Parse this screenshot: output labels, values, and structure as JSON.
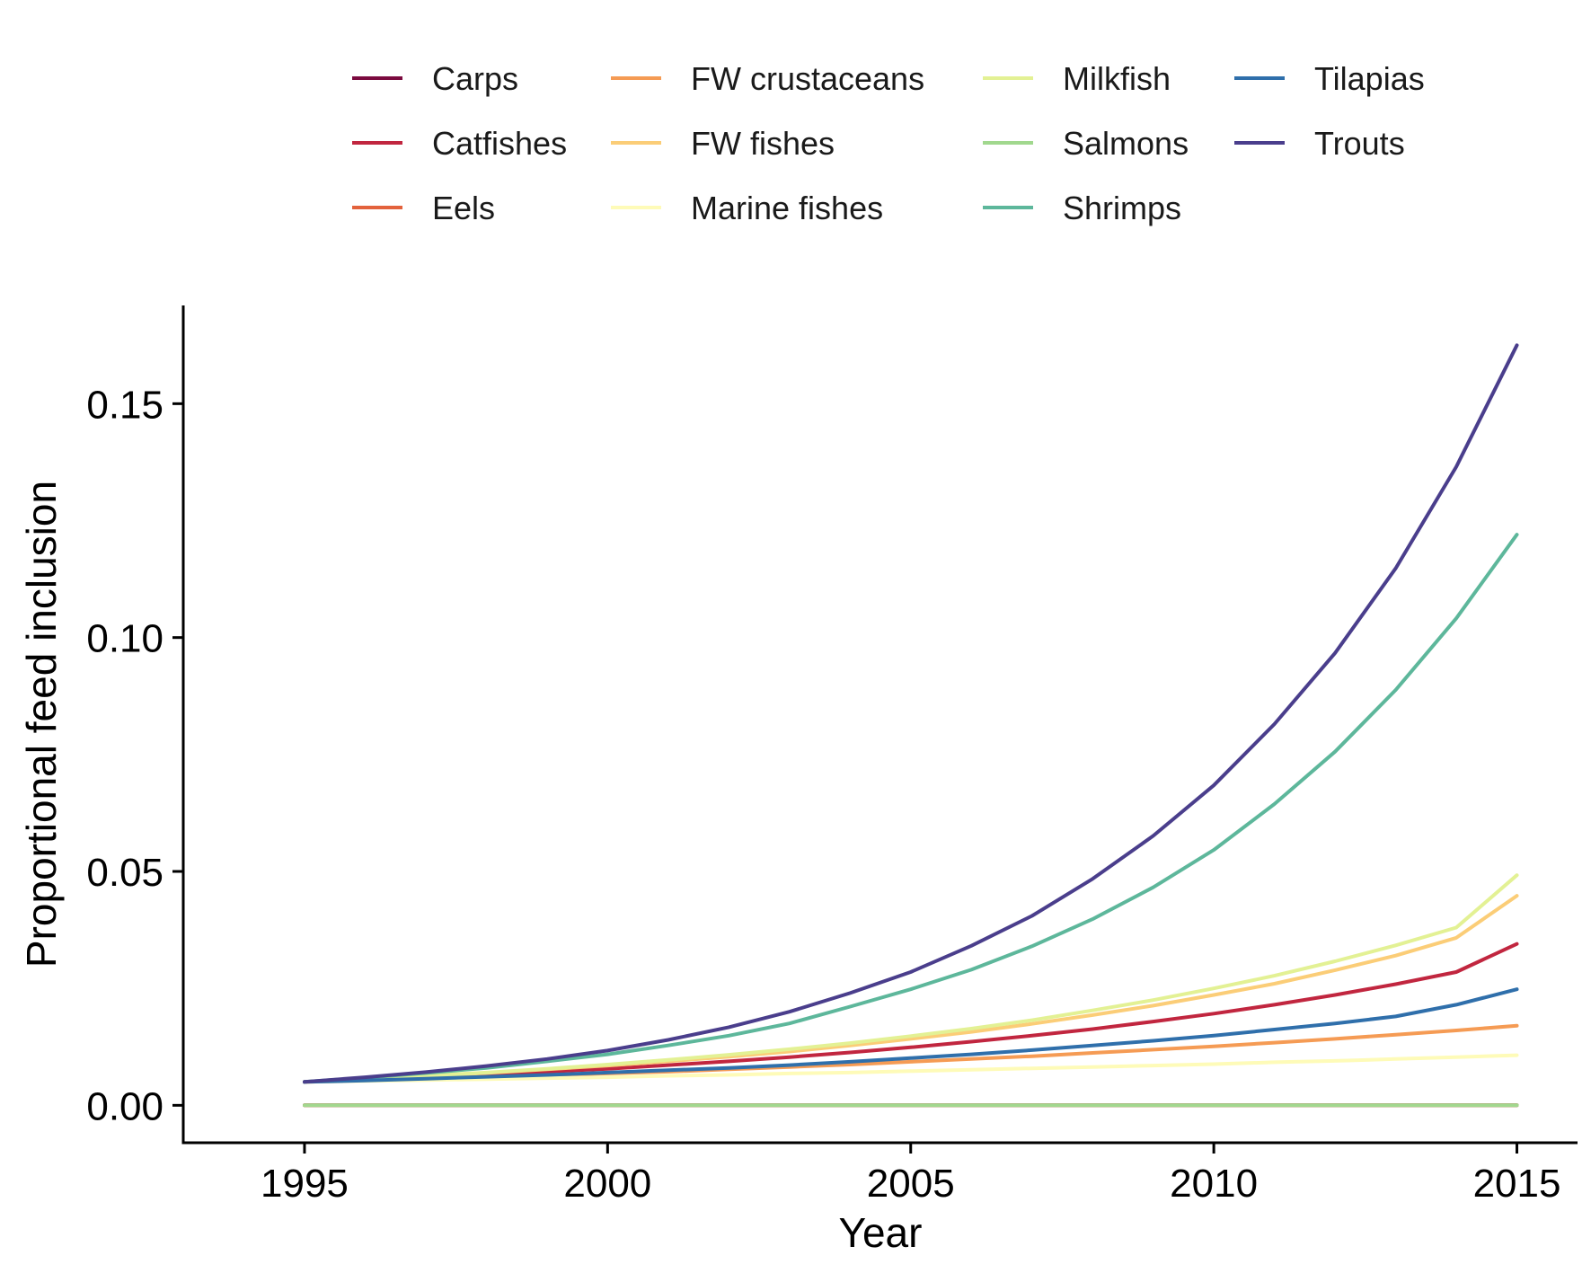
{
  "chart_data": {
    "type": "line",
    "title": "",
    "xlabel": "Year",
    "ylabel": "Proportional feed inclusion",
    "xlim": [
      1993,
      2016
    ],
    "ylim": [
      -0.008,
      0.171
    ],
    "xticks": [
      1995,
      2000,
      2005,
      2010,
      2015
    ],
    "xtick_labels": [
      "1995",
      "2000",
      "2005",
      "2010",
      "2015"
    ],
    "yticks": [
      0,
      0.05,
      0.1,
      0.15
    ],
    "ytick_labels": [
      "0.00",
      "0.05",
      "0.10",
      "0.15"
    ],
    "legend_position": "top",
    "grid": false,
    "x": [
      1995,
      1996,
      1997,
      1998,
      1999,
      2000,
      2001,
      2002,
      2003,
      2004,
      2005,
      2006,
      2007,
      2008,
      2009,
      2010,
      2011,
      2012,
      2013,
      2014,
      2015
    ],
    "series": [
      {
        "name": "Carps",
        "color": "#7b0a3f",
        "values": [
          0,
          0,
          0,
          0,
          0,
          0,
          0,
          0,
          0,
          0,
          0,
          0,
          0,
          0,
          0,
          0,
          0,
          0,
          0,
          0,
          0
        ]
      },
      {
        "name": "Catfishes",
        "color": "#c1263f",
        "values": [
          0.005,
          0.0055,
          0.006,
          0.0066,
          0.0072,
          0.0078,
          0.0086,
          0.0094,
          0.0103,
          0.0113,
          0.0124,
          0.0136,
          0.0149,
          0.0163,
          0.0179,
          0.0196,
          0.0215,
          0.0236,
          0.0259,
          0.0285,
          0.0345
        ]
      },
      {
        "name": "Eels",
        "color": "#e3623c",
        "values": [
          0,
          0,
          0,
          0,
          0,
          0,
          0,
          0,
          0,
          0,
          0,
          0,
          0,
          0,
          0,
          0,
          0,
          0,
          0,
          0,
          0
        ]
      },
      {
        "name": "FW crustaceans",
        "color": "#f59b54",
        "values": [
          0.005,
          0.0053,
          0.0056,
          0.006,
          0.0064,
          0.0068,
          0.0072,
          0.0077,
          0.0082,
          0.0087,
          0.0093,
          0.0099,
          0.0105,
          0.0112,
          0.0119,
          0.0126,
          0.0134,
          0.0142,
          0.0151,
          0.016,
          0.017
        ]
      },
      {
        "name": "FW fishes",
        "color": "#fbcd77",
        "values": [
          0.005,
          0.0056,
          0.0062,
          0.0069,
          0.0077,
          0.0085,
          0.0094,
          0.0104,
          0.0115,
          0.0128,
          0.0142,
          0.0157,
          0.0174,
          0.0193,
          0.0213,
          0.0236,
          0.026,
          0.0289,
          0.032,
          0.0358,
          0.0448
        ]
      },
      {
        "name": "Marine fishes",
        "color": "#fefbb8",
        "values": [
          0.005,
          0.0052,
          0.0054,
          0.0056,
          0.0058,
          0.006,
          0.0063,
          0.0065,
          0.0068,
          0.007,
          0.0073,
          0.0076,
          0.0079,
          0.0082,
          0.0085,
          0.0088,
          0.0092,
          0.0095,
          0.0099,
          0.0103,
          0.0107
        ]
      },
      {
        "name": "Milkfish",
        "color": "#e3f194",
        "values": [
          0.005,
          0.0056,
          0.0063,
          0.007,
          0.0078,
          0.0087,
          0.0097,
          0.0108,
          0.012,
          0.0133,
          0.0148,
          0.0164,
          0.0182,
          0.0203,
          0.0225,
          0.025,
          0.0277,
          0.0308,
          0.0342,
          0.038,
          0.0492
        ]
      },
      {
        "name": "Salmons",
        "color": "#a1d88e",
        "values": [
          0,
          0,
          0,
          0,
          0,
          0,
          0,
          0,
          0,
          0,
          0,
          0,
          0,
          0,
          0,
          0,
          0,
          0,
          0,
          0,
          0
        ]
      },
      {
        "name": "Shrimps",
        "color": "#5db79b",
        "values": [
          0.005,
          0.0059,
          0.0069,
          0.008,
          0.0094,
          0.0109,
          0.0128,
          0.0149,
          0.0175,
          0.0211,
          0.0248,
          0.029,
          0.034,
          0.0398,
          0.0466,
          0.0546,
          0.0644,
          0.0756,
          0.0888,
          0.1041,
          0.122
        ]
      },
      {
        "name": "Tilapias",
        "color": "#2f6fab",
        "values": [
          0.005,
          0.0053,
          0.0057,
          0.0061,
          0.0065,
          0.007,
          0.0075,
          0.008,
          0.0086,
          0.0093,
          0.0101,
          0.0109,
          0.0118,
          0.0128,
          0.0138,
          0.0149,
          0.0162,
          0.0175,
          0.019,
          0.0215,
          0.0248
        ]
      },
      {
        "name": "Trouts",
        "color": "#4a3e8c",
        "values": [
          0.005,
          0.006,
          0.0071,
          0.0084,
          0.0099,
          0.0117,
          0.014,
          0.0167,
          0.02,
          0.024,
          0.0285,
          0.0341,
          0.0405,
          0.0484,
          0.0576,
          0.0684,
          0.0815,
          0.0967,
          0.1148,
          0.1365,
          0.1625
        ]
      }
    ]
  }
}
